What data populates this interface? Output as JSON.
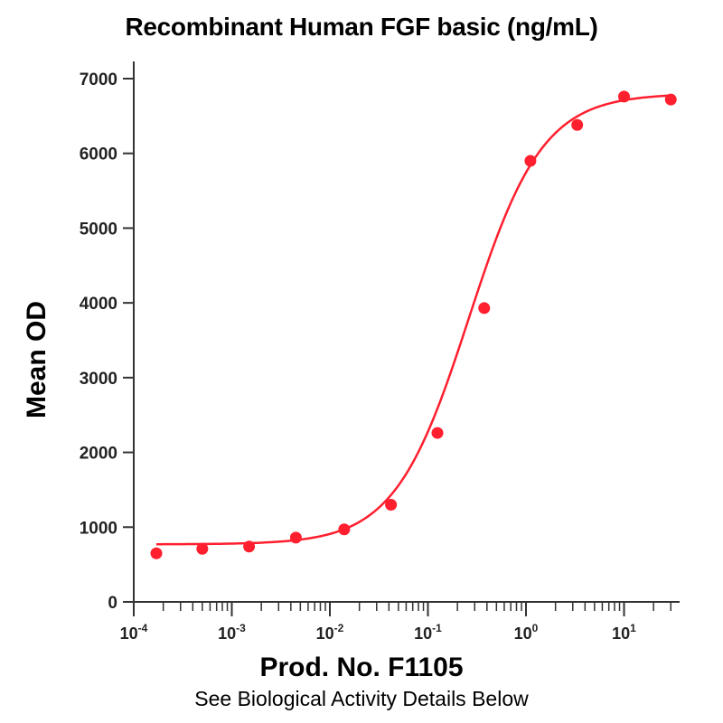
{
  "chart_data": {
    "type": "scatter",
    "title": "Recombinant Human FGF basic (ng/mL)",
    "subtitle": "Prod. No. F1105",
    "footnote": "See Biological Activity Details Below",
    "xlabel": "",
    "ylabel": "Mean OD",
    "x_scale": "log",
    "xlim": [
      0.0001,
      40
    ],
    "ylim": [
      0,
      7000
    ],
    "y_ticks": [
      0,
      1000,
      2000,
      3000,
      4000,
      5000,
      6000,
      7000
    ],
    "x_ticks": [
      {
        "base": "10",
        "exp": "-4"
      },
      {
        "base": "10",
        "exp": "-3"
      },
      {
        "base": "10",
        "exp": "-2"
      },
      {
        "base": "10",
        "exp": "-1"
      },
      {
        "base": "10",
        "exp": "0"
      },
      {
        "base": "10",
        "exp": "1"
      }
    ],
    "grid": false,
    "legend": "none",
    "color": "#ff1f2e",
    "series": [
      {
        "x": [
          0.00017,
          0.0005,
          0.0015,
          0.0045,
          0.014,
          0.042,
          0.125,
          0.375,
          1.11,
          3.33,
          10,
          30
        ],
        "values": [
          650,
          710,
          740,
          860,
          970,
          1300,
          2260,
          3930,
          5900,
          6380,
          6760,
          6720
        ]
      }
    ]
  }
}
